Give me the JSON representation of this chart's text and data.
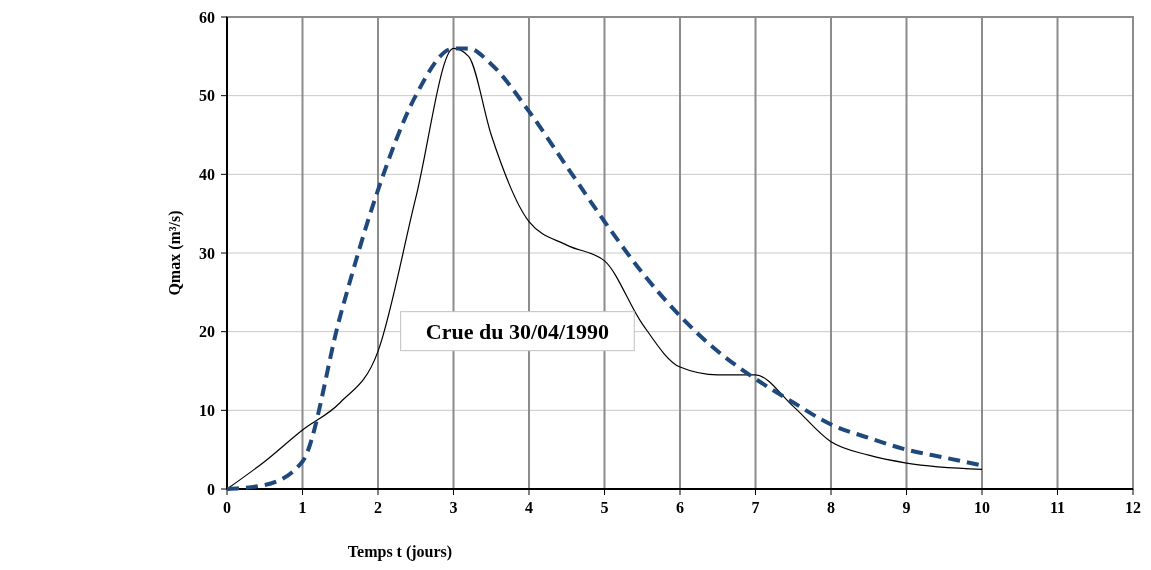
{
  "chart_data": {
    "type": "line",
    "xlabel": "Temps t (jours)",
    "ylabel": "Qmax (m³/s)",
    "xlim": [
      0,
      12
    ],
    "xticks": [
      0,
      1,
      2,
      3,
      4,
      5,
      6,
      7,
      8,
      9,
      10,
      11,
      12
    ],
    "ylim": [
      0,
      60
    ],
    "yticks": [
      0,
      10,
      20,
      30,
      40,
      50,
      60
    ],
    "grid": true,
    "marker": "none",
    "annotations": [
      "Crue du 30/04/1990"
    ],
    "series": [
      {
        "color": "#000000",
        "line_style": "solid",
        "x": [
          0,
          0.5,
          1,
          1.5,
          2,
          2.5,
          3,
          3.2,
          3.5,
          4,
          4.5,
          5,
          5.5,
          6,
          6.5,
          7,
          7.5,
          8,
          8.5,
          9,
          10
        ],
        "values": [
          0,
          3.5,
          7.5,
          11,
          17.5,
          37,
          56,
          55,
          45,
          34,
          31,
          29,
          21,
          15.5,
          14.5,
          14.5,
          10.5,
          6,
          4.3,
          3.3,
          2.5
        ]
      },
      {
        "color": "#1f497d",
        "line_style": "dashed",
        "x": [
          0,
          0.5,
          1,
          1.5,
          2,
          2.5,
          3,
          3.2,
          3.5,
          4,
          4.5,
          5,
          5.5,
          6,
          6.5,
          7,
          7.5,
          8,
          8.5,
          9,
          9.5,
          10
        ],
        "values": [
          0,
          0.5,
          3.5,
          22,
          38,
          50,
          56,
          56,
          54,
          48,
          41,
          34,
          27.5,
          22,
          17.5,
          14,
          11,
          8.2,
          6.5,
          5,
          4,
          3
        ]
      }
    ]
  }
}
